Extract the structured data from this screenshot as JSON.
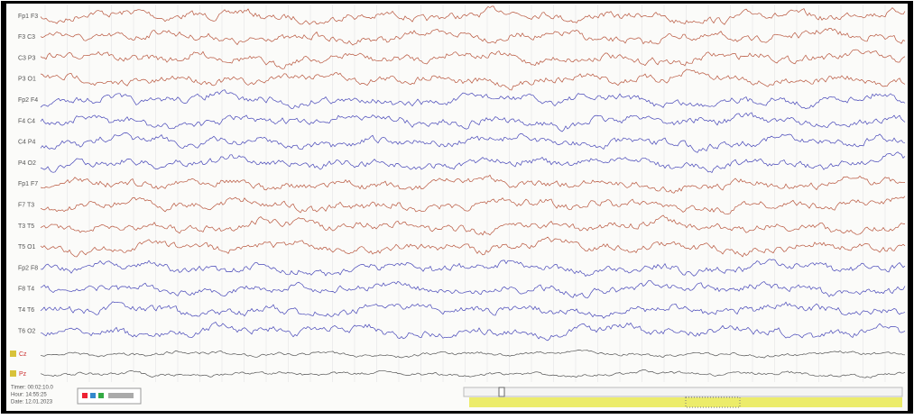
{
  "channels": [
    "Fp1 F3",
    "F3 C3",
    "C3 P3",
    "P3 O1",
    "Fp2 F4",
    "F4 C4",
    "C4 P4",
    "P4 O2",
    "Fp1 F7",
    "F7 T3",
    "T3 T5",
    "T5 O1",
    "Fp2 F8",
    "F8 T4",
    "T4 T6",
    "T6 O2"
  ],
  "extra_channels": [
    "Cz",
    "Pz"
  ],
  "footer": {
    "timer": "Timer: 00:02:10.0",
    "hour": "Hour: 14:55:25",
    "date": "Date: 12.01.2023"
  }
}
